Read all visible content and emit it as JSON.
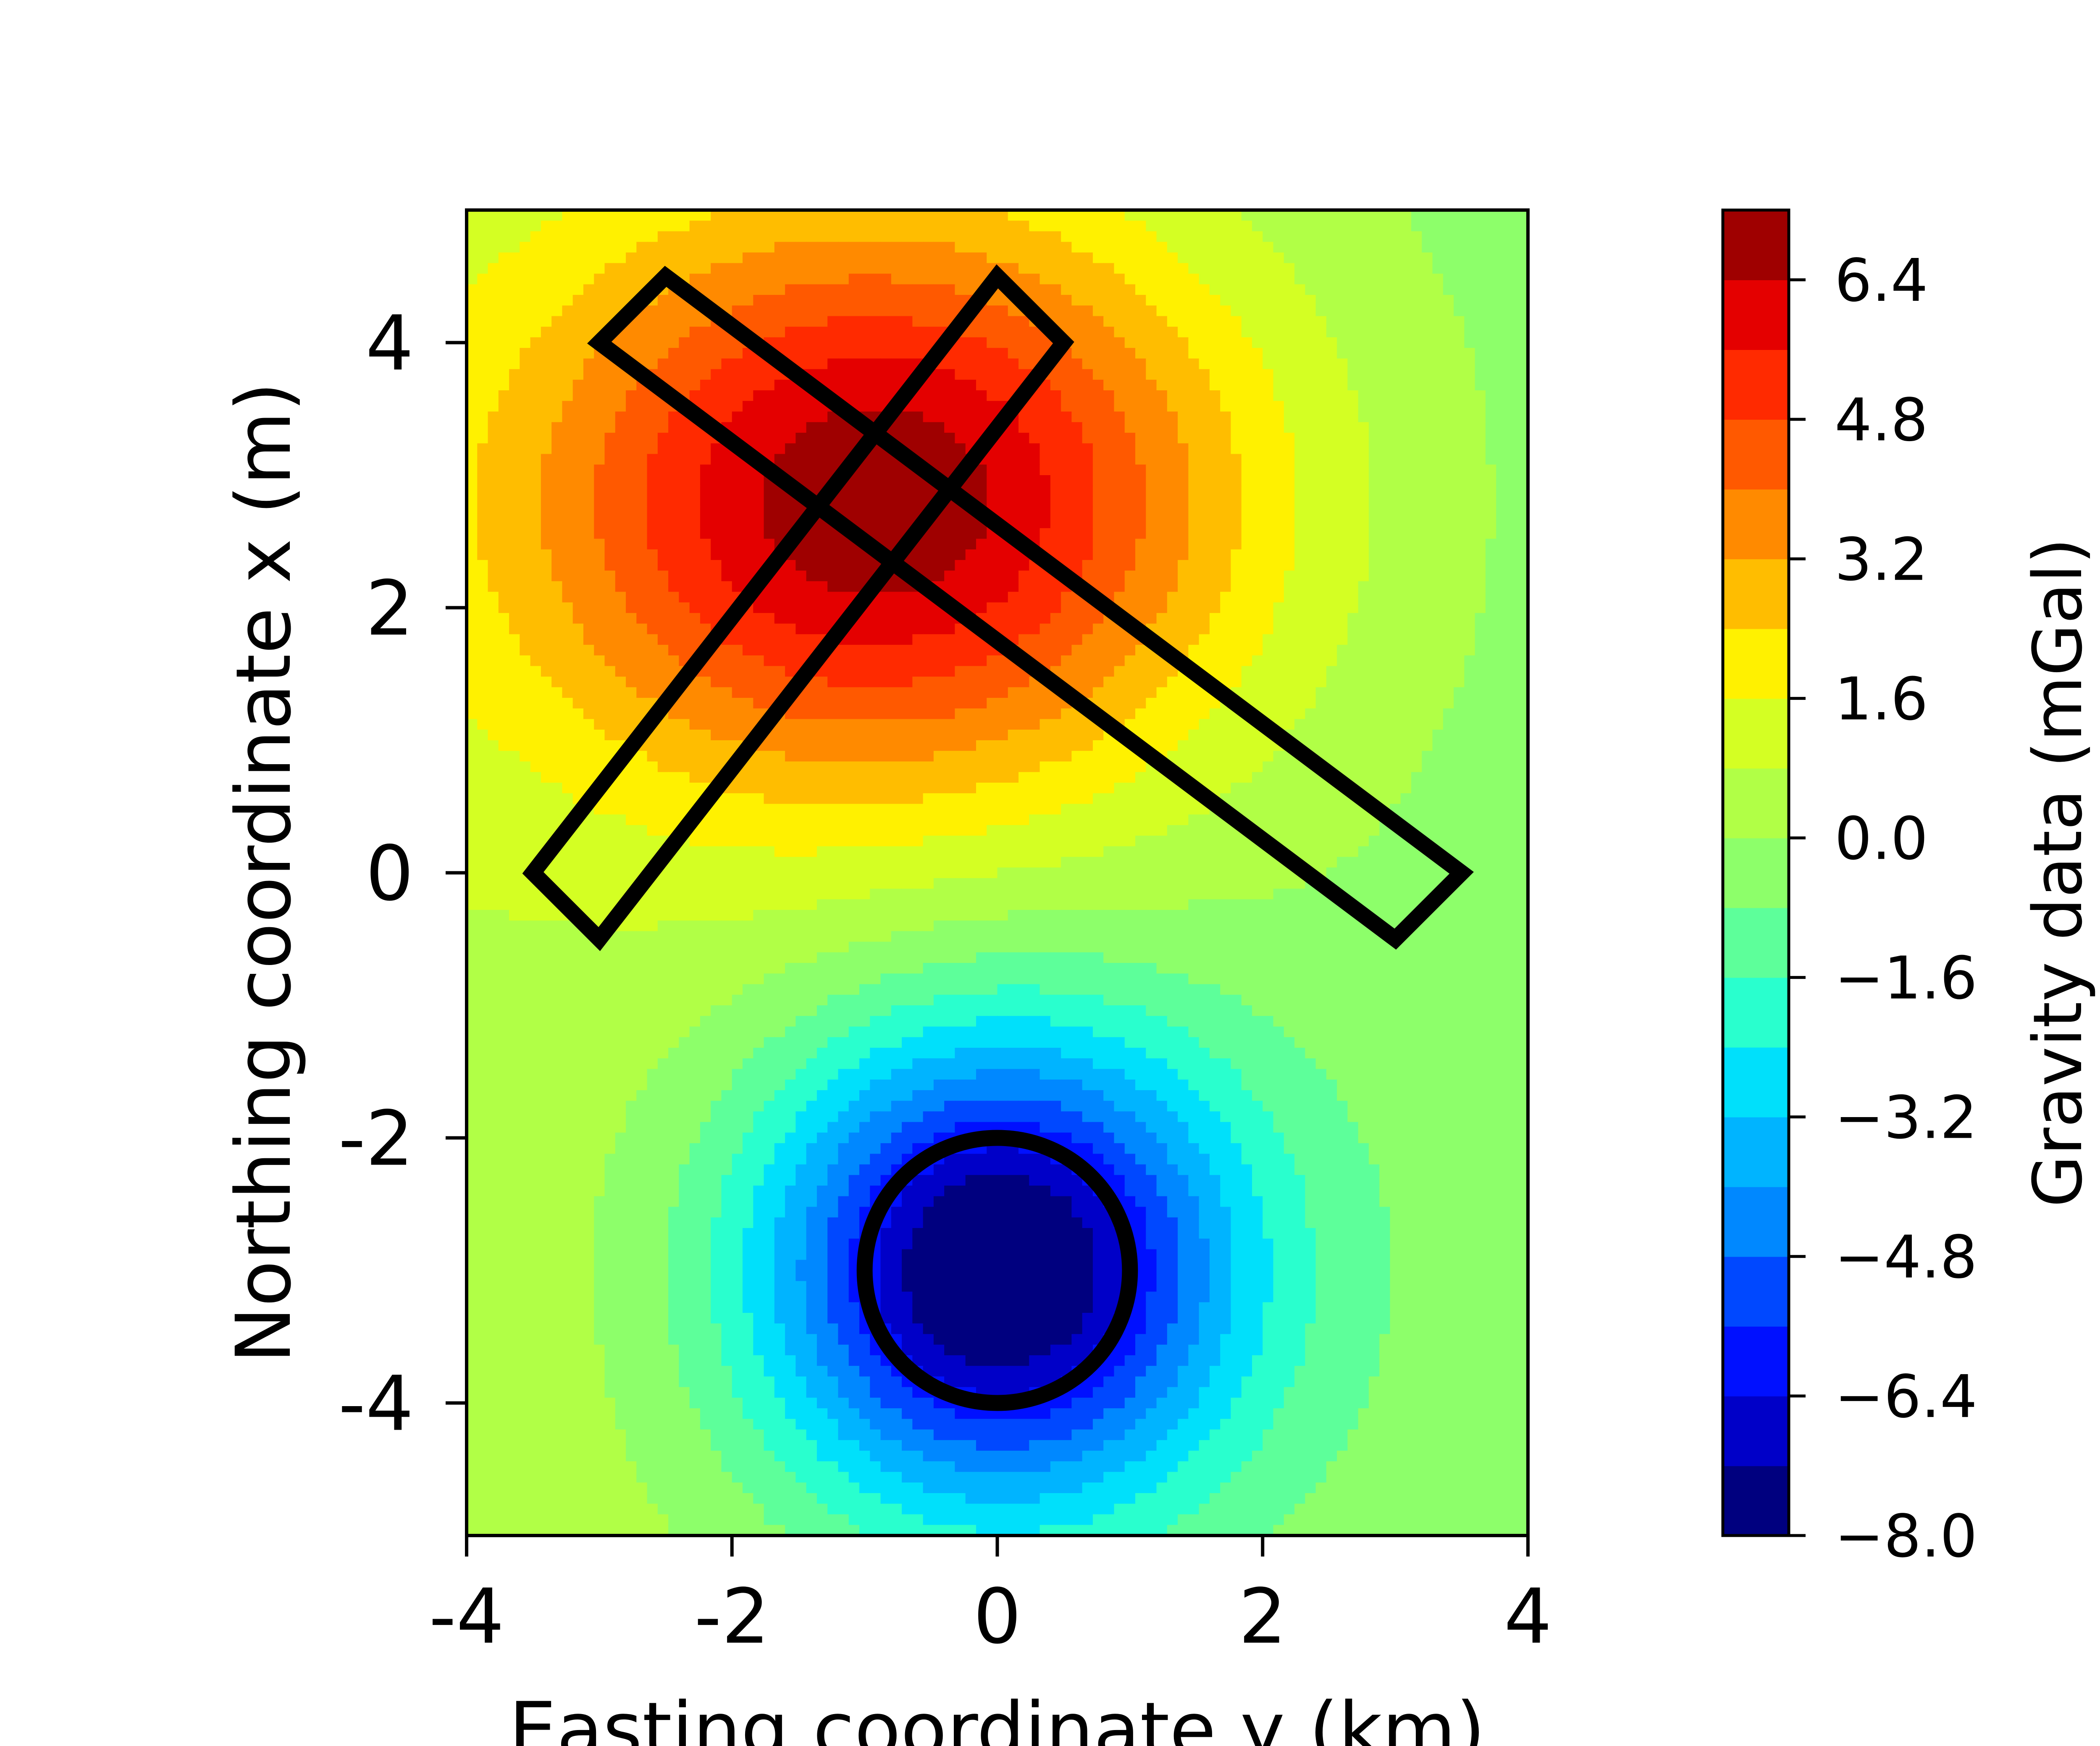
{
  "chart_data": {
    "type": "heatmap",
    "subtype": "filled-contour",
    "xlabel": "Easting coordinate y (km)",
    "ylabel": "Northing coordinate x (m)",
    "xlim": [
      -4,
      4
    ],
    "ylim": [
      -5,
      5
    ],
    "x_ticks": [
      -4,
      -2,
      0,
      2,
      4
    ],
    "x_tick_labels": [
      "-4",
      "-2",
      "0",
      "2",
      "4"
    ],
    "y_ticks": [
      -4,
      -2,
      0,
      2,
      4
    ],
    "y_tick_labels": [
      "-4",
      "-2",
      "0",
      "2",
      "4"
    ],
    "grid": false,
    "colormap": "jet",
    "field_sources": [
      {
        "type": "positive-anomaly",
        "x": -0.85,
        "y": 2.8,
        "peak": 6.6
      },
      {
        "type": "negative-anomaly",
        "x": 0.0,
        "y": -3.0,
        "peak": -8.0
      }
    ],
    "outlines": [
      {
        "type": "polygon",
        "name": "body-1",
        "points": [
          [
            -3.0,
            -0.5
          ],
          [
            -3.5,
            0.0
          ],
          [
            0.0,
            4.5
          ],
          [
            0.5,
            4.0
          ]
        ]
      },
      {
        "type": "polygon",
        "name": "body-2",
        "points": [
          [
            -3.0,
            4.0
          ],
          [
            -2.5,
            4.5
          ],
          [
            3.5,
            0.0
          ],
          [
            3.0,
            -0.5
          ]
        ]
      },
      {
        "type": "circle",
        "name": "body-3",
        "center": [
          0.0,
          -3.0
        ],
        "radius": 1.0
      }
    ],
    "colorbar": {
      "label": "Gravity data (mGal)",
      "min": -8.0,
      "max": 7.2,
      "levels": [
        -8.0,
        -7.2,
        -6.4,
        -5.6,
        -4.8,
        -4.0,
        -3.2,
        -2.4,
        -1.6,
        -0.8,
        0.0,
        0.8,
        1.6,
        2.4,
        3.2,
        4.0,
        4.8,
        5.6,
        6.4,
        7.2
      ],
      "ticks": [
        6.4,
        4.8,
        3.2,
        1.6,
        0.0,
        -1.6,
        -3.2,
        -4.8,
        -6.4,
        -8.0
      ],
      "tick_labels": [
        "6.4",
        "4.8",
        "3.2",
        "1.6",
        "0.0",
        "−1.6",
        "−3.2",
        "−4.8",
        "−6.4",
        "−8.0"
      ],
      "colors": [
        "#00007f",
        "#0000c8",
        "#0010ff",
        "#0048ff",
        "#0088ff",
        "#00b4ff",
        "#00e0fb",
        "#29ffce",
        "#5dff9a",
        "#8dff6a",
        "#b1ff46",
        "#d4ff23",
        "#fff100",
        "#ffbd00",
        "#ff8a00",
        "#ff5900",
        "#ff2a00",
        "#e40000",
        "#9f0000"
      ]
    }
  }
}
